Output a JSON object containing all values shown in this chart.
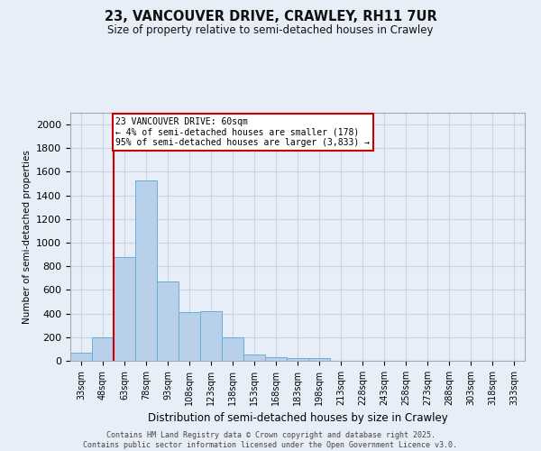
{
  "title_line1": "23, VANCOUVER DRIVE, CRAWLEY, RH11 7UR",
  "title_line2": "Size of property relative to semi-detached houses in Crawley",
  "xlabel": "Distribution of semi-detached houses by size in Crawley",
  "ylabel": "Number of semi-detached properties",
  "bin_labels": [
    "33sqm",
    "48sqm",
    "63sqm",
    "78sqm",
    "93sqm",
    "108sqm",
    "123sqm",
    "138sqm",
    "153sqm",
    "168sqm",
    "183sqm",
    "198sqm",
    "213sqm",
    "228sqm",
    "243sqm",
    "258sqm",
    "273sqm",
    "288sqm",
    "303sqm",
    "318sqm",
    "333sqm"
  ],
  "bar_values": [
    65,
    200,
    880,
    1530,
    675,
    415,
    420,
    195,
    55,
    30,
    25,
    20,
    0,
    0,
    0,
    0,
    0,
    0,
    0,
    0,
    0
  ],
  "bar_color": "#b8d0ea",
  "bar_edge_color": "#6aaed6",
  "grid_color": "#c8d4e4",
  "background_color": "#e8eef8",
  "vline_x_index": 2,
  "vline_color": "#cc0000",
  "annotation_text": "23 VANCOUVER DRIVE: 60sqm\n← 4% of semi-detached houses are smaller (178)\n95% of semi-detached houses are larger (3,833) →",
  "annotation_box_color": "#cc0000",
  "ylim": [
    0,
    2100
  ],
  "yticks": [
    0,
    200,
    400,
    600,
    800,
    1000,
    1200,
    1400,
    1600,
    1800,
    2000
  ],
  "footer_text": "Contains HM Land Registry data © Crown copyright and database right 2025.\nContains public sector information licensed under the Open Government Licence v3.0.",
  "figsize": [
    6.0,
    5.0
  ],
  "dpi": 100
}
